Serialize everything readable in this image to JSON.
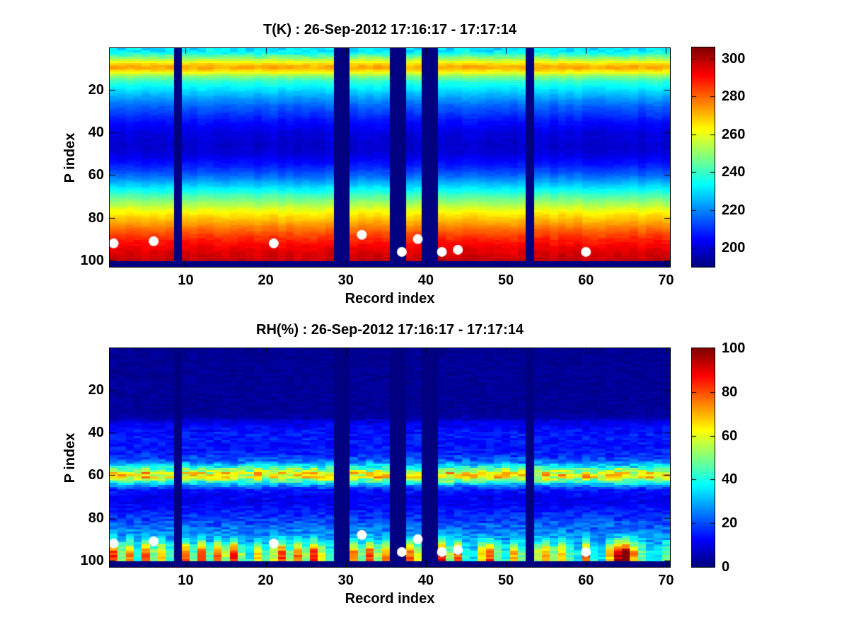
{
  "figure": {
    "background": "#ffffff",
    "text_color": "#000000"
  },
  "chart_data": [
    {
      "type": "heatmap",
      "title": "T(K) : 26-Sep-2012 17:16:17 - 17:17:14",
      "xlabel": "Record index",
      "ylabel": "P index",
      "colormap": "jet",
      "x_ticks": [
        10,
        20,
        30,
        40,
        50,
        60,
        70
      ],
      "y_ticks": [
        20,
        40,
        60,
        80,
        100
      ],
      "x_range": [
        0.5,
        70.5
      ],
      "p_range": [
        0.4,
        103
      ],
      "n_records": 70,
      "n_levels": 103,
      "clim": [
        190,
        306
      ],
      "colorbar_ticks": [
        200,
        220,
        240,
        260,
        280,
        300
      ],
      "missing_records": [
        9,
        29,
        30,
        36,
        37,
        40,
        41,
        53
      ],
      "missing_below_level": 100.8,
      "profile": [
        [
          0.4,
          229
        ],
        [
          2,
          232
        ],
        [
          3,
          236
        ],
        [
          4,
          243
        ],
        [
          5,
          249
        ],
        [
          6,
          255
        ],
        [
          7,
          261
        ],
        [
          8,
          267
        ],
        [
          9,
          271
        ],
        [
          10,
          272
        ],
        [
          11,
          267
        ],
        [
          12,
          261
        ],
        [
          13,
          254
        ],
        [
          14,
          248
        ],
        [
          15,
          244
        ],
        [
          16,
          240
        ],
        [
          18,
          234
        ],
        [
          20,
          230
        ],
        [
          22,
          226
        ],
        [
          25,
          220
        ],
        [
          28,
          215
        ],
        [
          31,
          211
        ],
        [
          34,
          207
        ],
        [
          37,
          204
        ],
        [
          40,
          201
        ],
        [
          43,
          200
        ],
        [
          46,
          199
        ],
        [
          49,
          200
        ],
        [
          52,
          203
        ],
        [
          55,
          207
        ],
        [
          58,
          212
        ],
        [
          61,
          218
        ],
        [
          64,
          226
        ],
        [
          67,
          234
        ],
        [
          70,
          243
        ],
        [
          73,
          251
        ],
        [
          76,
          259
        ],
        [
          79,
          266
        ],
        [
          82,
          272
        ],
        [
          85,
          278
        ],
        [
          88,
          284
        ],
        [
          91,
          289
        ],
        [
          94,
          293
        ],
        [
          97,
          296
        ],
        [
          100,
          298
        ],
        [
          100.8,
          299
        ]
      ],
      "noise": {
        "seed": 42,
        "record_amp": 1.5
      },
      "dots": [
        [
          1,
          92
        ],
        [
          6,
          91
        ],
        [
          21,
          92
        ],
        [
          32,
          88
        ],
        [
          37,
          96
        ],
        [
          39,
          90
        ],
        [
          42,
          96
        ],
        [
          44,
          95
        ],
        [
          60,
          96
        ]
      ]
    },
    {
      "type": "heatmap",
      "title": "RH(%) : 26-Sep-2012 17:16:17 - 17:17:14",
      "xlabel": "Record index",
      "ylabel": "P index",
      "colormap": "jet",
      "x_ticks": [
        10,
        20,
        30,
        40,
        50,
        60,
        70
      ],
      "y_ticks": [
        20,
        40,
        60,
        80,
        100
      ],
      "x_range": [
        0.5,
        70.5
      ],
      "p_range": [
        0.4,
        103
      ],
      "n_records": 70,
      "n_levels": 103,
      "clim": [
        0,
        100
      ],
      "colorbar_ticks": [
        0,
        20,
        40,
        60,
        80,
        100
      ],
      "missing_records": [
        9,
        29,
        30,
        36,
        37,
        40,
        41,
        53
      ],
      "missing_below_level": 100.8,
      "profile": [
        [
          0.4,
          2
        ],
        [
          30,
          2.5
        ],
        [
          33,
          4
        ],
        [
          35,
          10
        ],
        [
          38,
          13
        ],
        [
          42,
          15
        ],
        [
          46,
          14
        ],
        [
          50,
          16
        ],
        [
          53,
          22
        ],
        [
          55,
          30
        ],
        [
          57,
          42
        ],
        [
          59,
          50
        ],
        [
          61,
          50
        ],
        [
          63,
          38
        ],
        [
          65,
          24
        ],
        [
          67,
          15
        ],
        [
          70,
          11
        ],
        [
          74,
          12
        ],
        [
          78,
          16
        ],
        [
          82,
          20
        ],
        [
          85,
          23
        ],
        [
          90,
          24
        ],
        [
          95,
          24
        ],
        [
          100,
          24
        ],
        [
          100.8,
          18
        ]
      ],
      "band": {
        "center": 60,
        "sigma": 2.3,
        "amps": [
          12,
          16,
          10,
          14,
          18,
          11,
          15,
          9,
          null,
          13,
          17,
          12,
          8,
          15,
          19,
          11,
          14,
          10,
          16,
          12,
          18,
          13,
          9,
          15,
          11,
          17,
          12,
          14,
          null,
          null,
          16,
          10,
          13,
          18,
          12,
          null,
          null,
          15,
          11,
          null,
          null,
          14,
          17,
          10,
          13,
          16,
          9,
          12,
          15,
          18,
          11,
          14,
          null,
          12,
          16,
          10,
          15,
          13,
          9,
          17,
          12,
          15,
          10,
          18,
          14,
          11,
          13,
          16,
          12,
          19
        ]
      },
      "surface": {
        "center": 97.5,
        "sigma": 4.5,
        "amps": [
          60,
          30,
          50,
          14,
          55,
          28,
          45,
          18,
          null,
          55,
          24,
          60,
          22,
          55,
          30,
          62,
          26,
          14,
          45,
          20,
          35,
          58,
          24,
          52,
          28,
          62,
          35,
          20,
          null,
          null,
          52,
          26,
          58,
          30,
          50,
          null,
          null,
          55,
          35,
          null,
          null,
          62,
          28,
          55,
          12,
          10,
          42,
          56,
          26,
          14,
          46,
          24,
          null,
          36,
          50,
          28,
          44,
          18,
          12,
          58,
          14,
          10,
          45,
          70,
          75,
          48,
          24,
          12,
          10,
          22
        ]
      },
      "noise": {
        "seed": 7,
        "rel": 0.5,
        "abs": 3
      },
      "dots": [
        [
          1,
          92
        ],
        [
          6,
          91
        ],
        [
          21,
          92
        ],
        [
          32,
          88
        ],
        [
          37,
          96
        ],
        [
          39,
          90
        ],
        [
          42,
          96
        ],
        [
          44,
          95
        ],
        [
          60,
          96
        ]
      ]
    }
  ]
}
